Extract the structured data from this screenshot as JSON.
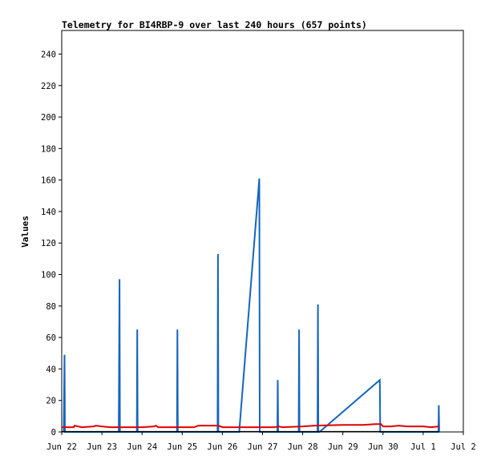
{
  "chart_data": {
    "type": "line",
    "title": "Telemetry for BI4RBP-9 over last 240 hours (657 points)",
    "ylabel": "Values",
    "xlabel": "",
    "ylim": [
      0,
      255
    ],
    "xlim": [
      0,
      10.0
    ],
    "yticks": [
      0,
      20,
      40,
      60,
      80,
      100,
      120,
      140,
      160,
      180,
      200,
      220,
      240
    ],
    "yticklabels": [
      "0",
      "20",
      "40",
      "60",
      "80",
      "100",
      "120",
      "140",
      "160",
      "180",
      "200",
      "220",
      "240"
    ],
    "xticks": [
      0,
      1,
      2,
      3,
      4,
      5,
      6,
      7,
      8,
      9,
      10
    ],
    "xticklabels": [
      "Jun 22",
      "Jun 23",
      "Jun 24",
      "Jun 25",
      "Jun 26",
      "Jun 27",
      "Jun 28",
      "Jun 29",
      "Jun 30",
      "Jul 1",
      "Jul 2"
    ],
    "x_units": "days since Jun 22 00:00",
    "grid": false,
    "series": [
      {
        "color": "#1565c0",
        "values": [
          [
            0.05,
            0
          ],
          [
            0.07,
            49
          ],
          [
            0.08,
            0
          ],
          [
            1.42,
            0
          ],
          [
            1.44,
            97
          ],
          [
            1.45,
            0
          ],
          [
            1.87,
            0
          ],
          [
            1.88,
            65
          ],
          [
            1.89,
            0
          ],
          [
            2.87,
            0
          ],
          [
            2.88,
            65
          ],
          [
            2.89,
            0
          ],
          [
            3.88,
            0
          ],
          [
            3.89,
            113
          ],
          [
            3.9,
            0
          ],
          [
            4.42,
            0
          ],
          [
            4.92,
            161
          ],
          [
            4.93,
            0
          ],
          [
            5.37,
            0
          ],
          [
            5.38,
            33
          ],
          [
            5.39,
            0
          ],
          [
            5.9,
            0
          ],
          [
            5.91,
            65
          ],
          [
            5.92,
            0
          ],
          [
            6.37,
            0
          ],
          [
            6.38,
            81
          ],
          [
            6.39,
            0
          ],
          [
            6.42,
            0
          ],
          [
            7.92,
            33
          ],
          [
            7.93,
            0
          ],
          [
            9.38,
            0
          ],
          [
            9.39,
            17
          ],
          [
            9.4,
            0
          ]
        ]
      },
      {
        "color": "#e00000",
        "values": [
          [
            0,
            3
          ],
          [
            0.3,
            3
          ],
          [
            0.32,
            4
          ],
          [
            0.5,
            3
          ],
          [
            0.8,
            3.5
          ],
          [
            0.85,
            4
          ],
          [
            1.0,
            3.5
          ],
          [
            1.2,
            3
          ],
          [
            1.5,
            3
          ],
          [
            2.0,
            3
          ],
          [
            2.3,
            3.5
          ],
          [
            2.35,
            4
          ],
          [
            2.4,
            3
          ],
          [
            2.9,
            3
          ],
          [
            3.3,
            3
          ],
          [
            3.4,
            4
          ],
          [
            3.9,
            4
          ],
          [
            4.0,
            3
          ],
          [
            4.5,
            3
          ],
          [
            5.0,
            3
          ],
          [
            5.3,
            3
          ],
          [
            5.4,
            3.5
          ],
          [
            5.5,
            3
          ],
          [
            6.0,
            3.5
          ],
          [
            6.3,
            4
          ],
          [
            7.0,
            4.5
          ],
          [
            7.5,
            4.5
          ],
          [
            7.8,
            5
          ],
          [
            7.95,
            5
          ],
          [
            8.0,
            3.5
          ],
          [
            8.2,
            3.5
          ],
          [
            8.4,
            4
          ],
          [
            8.6,
            3.5
          ],
          [
            9.0,
            3.5
          ],
          [
            9.2,
            3
          ],
          [
            9.4,
            3.5
          ]
        ]
      },
      {
        "color": "#000000",
        "values": [
          [
            0,
            0.2
          ],
          [
            9.4,
            0.2
          ]
        ]
      }
    ]
  }
}
